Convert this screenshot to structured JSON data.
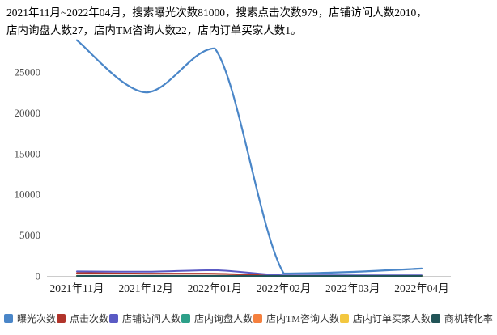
{
  "header": {
    "line1": "2021年11月~2022年04月，搜索曝光次数81000，搜索点击次数979，店铺访问人数2010，",
    "line2": "店内询盘人数27，店内TM咨询人数22，店内订单买家人数1。"
  },
  "chart_data": {
    "type": "line",
    "smooth": true,
    "title": "",
    "xlabel": "",
    "ylabel": "",
    "grid": false,
    "legend_position": "bottom",
    "categories": [
      "2021年11月",
      "2021年12月",
      "2022年01月",
      "2022年02月",
      "2022年03月",
      "2022年04月"
    ],
    "yticks": [
      0,
      5000,
      10000,
      15000,
      20000,
      25000
    ],
    "ylim": [
      0,
      30000
    ],
    "series": [
      {
        "name": "曝光次数",
        "color": "#4a86c8",
        "values": [
          28900,
          22500,
          27900,
          300,
          500,
          900
        ]
      },
      {
        "name": "点击次数",
        "color": "#b1342b",
        "values": [
          360,
          290,
          280,
          14,
          17,
          18
        ]
      },
      {
        "name": "店铺访问人数",
        "color": "#5a5ac4",
        "values": [
          560,
          520,
          700,
          70,
          80,
          80
        ]
      },
      {
        "name": "店内询盘人数",
        "color": "#2da089",
        "values": [
          9,
          8,
          7,
          1,
          1,
          1
        ]
      },
      {
        "name": "店内TM咨询人数",
        "color": "#f5803e",
        "values": [
          8,
          6,
          5,
          1,
          1,
          1
        ]
      },
      {
        "name": "店内订单买家人数",
        "color": "#f3c73f",
        "values": [
          0,
          0,
          1,
          0,
          0,
          0
        ]
      },
      {
        "name": "商机转化率",
        "color": "#215457",
        "values": [
          0,
          0,
          0,
          0,
          0,
          0
        ]
      }
    ]
  }
}
